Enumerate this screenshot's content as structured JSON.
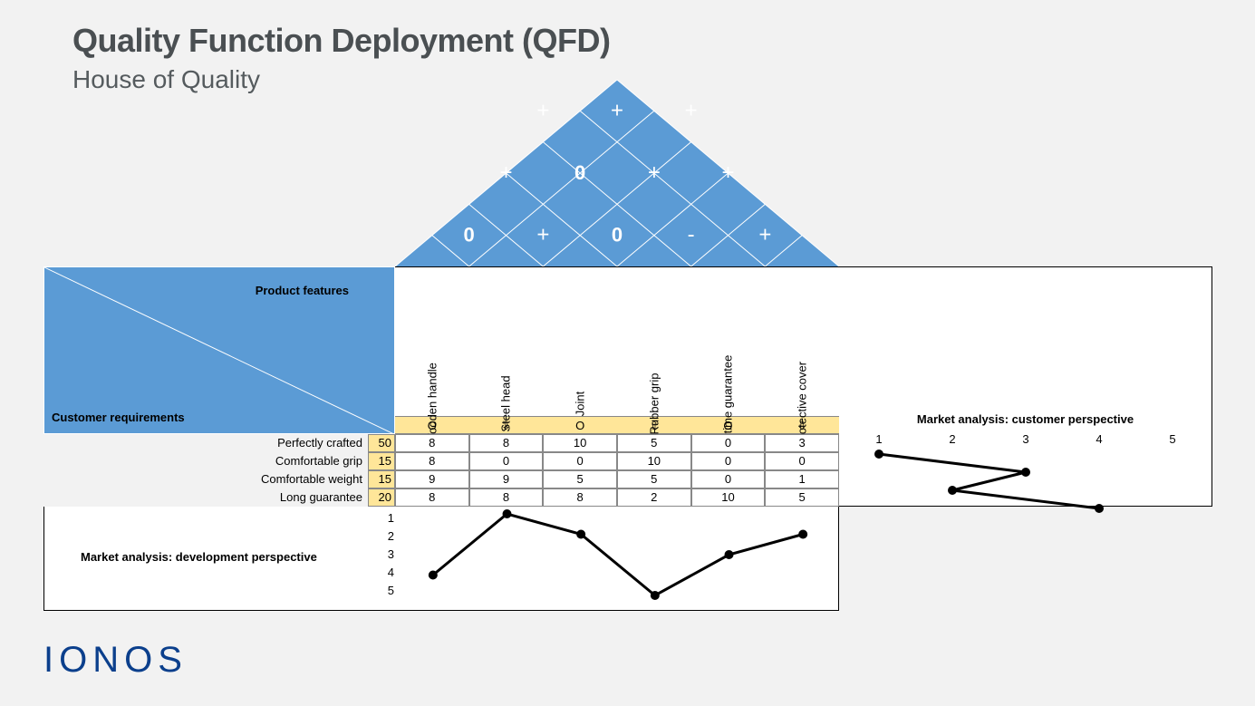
{
  "title": "Quality Function Deployment (QFD)",
  "subtitle": "House of Quality",
  "logo": "IONOS",
  "corner": {
    "product_features": "Product features",
    "customer_requirements": "Customer requirements"
  },
  "colors": {
    "background": "#f2f2f2",
    "header_blue": "#5b9bd5",
    "highlight_yellow": "#ffe699",
    "roof_blue": "#5b9bd5",
    "roof_line": "#ffffff",
    "roof_text": "#ffffff",
    "border": "#888888",
    "outer_border": "#000000",
    "chart_line": "#000000",
    "logo_color": "#0b3f8c",
    "title_color": "#4a4f52"
  },
  "features": [
    {
      "label": "Wooden handle",
      "arrow": "O"
    },
    {
      "label": "Steel head",
      "arrow": "⇩"
    },
    {
      "label": "Joint",
      "arrow": "O"
    },
    {
      "label": "Rubber grip",
      "arrow": "⇧"
    },
    {
      "label": "Lifetime guarantee",
      "arrow": "O"
    },
    {
      "label": "Protective cover",
      "arrow": "⇩"
    }
  ],
  "requirements": [
    {
      "label": "Perfectly crafted",
      "weight": 50,
      "scores": [
        8,
        8,
        10,
        5,
        0,
        3
      ]
    },
    {
      "label": "Comfortable grip",
      "weight": 15,
      "scores": [
        8,
        0,
        0,
        10,
        0,
        0
      ]
    },
    {
      "label": "Comfortable weight",
      "weight": 15,
      "scores": [
        9,
        9,
        5,
        5,
        0,
        1
      ]
    },
    {
      "label": "Long guarantee",
      "weight": 20,
      "scores": [
        8,
        8,
        8,
        2,
        10,
        5
      ]
    }
  ],
  "roof": {
    "type": "correlation-roof",
    "rows": [
      [
        "+"
      ],
      [
        "+",
        "+"
      ],
      [
        "+",
        "+",
        "+"
      ],
      [
        "+",
        "0",
        "+",
        "+"
      ],
      [
        "0",
        "+",
        "0",
        "-",
        "+"
      ]
    ],
    "cell_diag": 81.6
  },
  "customer_chart": {
    "title": "Market analysis: customer perspective",
    "type": "line",
    "axis_labels": [
      1,
      2,
      3,
      4,
      5
    ],
    "values": [
      1,
      3,
      2,
      4
    ],
    "line_width": 3,
    "marker_radius": 5
  },
  "dev_chart": {
    "title": "Market analysis: development perspective",
    "type": "line",
    "axis_labels": [
      1,
      2,
      3,
      4,
      5
    ],
    "values": [
      4,
      1,
      2,
      5,
      3,
      2
    ],
    "line_width": 3,
    "marker_radius": 5
  }
}
